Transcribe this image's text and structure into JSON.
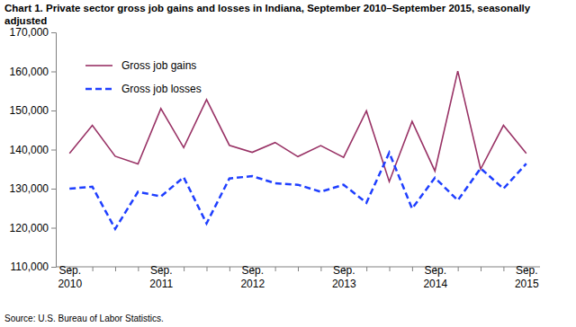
{
  "chart_data": {
    "type": "line",
    "title": "Chart 1. Private sector gross job gains and losses in Indiana, September 2010–September 2015, seasonally adjusted",
    "annotations": [
      "Source: U.S. Bureau of Labor Statistics."
    ],
    "categories": [
      "Sep. 2010",
      null,
      null,
      null,
      "Sep. 2011",
      null,
      null,
      null,
      "Sep. 2012",
      null,
      null,
      null,
      "Sep. 2013",
      null,
      null,
      null,
      "Sep. 2014",
      null,
      null,
      null,
      "Sep. 2015"
    ],
    "series": [
      {
        "name": "Gross job gains",
        "color": "#993366",
        "line_style": "solid",
        "values": [
          139000,
          146200,
          138300,
          136300,
          150500,
          140500,
          152800,
          141100,
          139300,
          141800,
          138200,
          141000,
          138000,
          149900,
          131800,
          147200,
          134500,
          160100,
          135000,
          146200,
          139000
        ]
      },
      {
        "name": "Gross job losses",
        "color": "#1f3fff",
        "line_style": "dashed",
        "values": [
          130000,
          130500,
          119700,
          129200,
          128000,
          132900,
          121100,
          132600,
          133200,
          131400,
          131000,
          129200,
          131000,
          126400,
          139200,
          124900,
          132800,
          127000,
          135200,
          130000,
          136400
        ]
      }
    ],
    "ylim": [
      110000,
      170000
    ],
    "yticks": [
      {
        "value": 110000,
        "label": "110,000"
      },
      {
        "value": 120000,
        "label": "120,000"
      },
      {
        "value": 130000,
        "label": "130,000"
      },
      {
        "value": 140000,
        "label": "140,000"
      },
      {
        "value": 150000,
        "label": "150,000"
      },
      {
        "value": 160000,
        "label": "160,000"
      },
      {
        "value": 170000,
        "label": "170,000"
      }
    ],
    "grid": false,
    "legend": "upper left"
  }
}
